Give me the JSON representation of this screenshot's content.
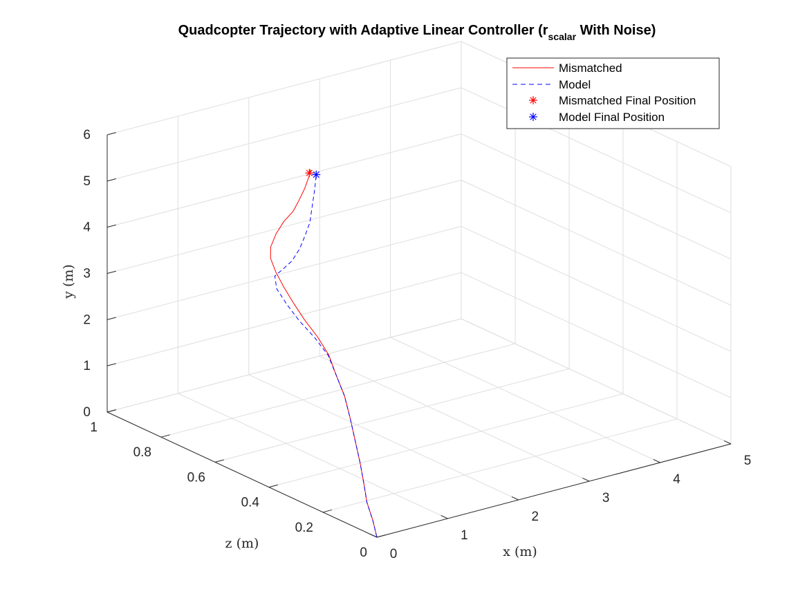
{
  "chart_data": {
    "type": "line",
    "title": {
      "prefix": "Quadcopter Trajectory with Adaptive Linear Controller (r",
      "subscript": "scalar",
      "suffix": " With Noise)"
    },
    "xlabel": "x (m)",
    "ylabel": "y (m)",
    "zlabel": "z (m)",
    "xlim": [
      0,
      5
    ],
    "ylim": [
      0,
      6
    ],
    "zlim": [
      0,
      1
    ],
    "x_ticks": [
      "0",
      "1",
      "2",
      "3",
      "4",
      "5"
    ],
    "y_ticks": [
      "0",
      "1",
      "2",
      "3",
      "4",
      "5",
      "6"
    ],
    "z_ticks": [
      "0",
      "0.2",
      "0.4",
      "0.6",
      "0.8",
      "1"
    ],
    "grid": true,
    "legend_position": "top-right",
    "legend": [
      {
        "label": "Mismatched",
        "style": "solid-line",
        "color": "#ff0000"
      },
      {
        "label": "Model",
        "style": "dashed-line",
        "color": "#0000ff"
      },
      {
        "label": "Mismatched Final Position",
        "style": "asterisk",
        "color": "#ff0000"
      },
      {
        "label": "Model Final Position",
        "style": "asterisk",
        "color": "#0000ff"
      }
    ],
    "series": [
      {
        "name": "Mismatched",
        "color": "#ff0000",
        "style": "solid",
        "x": [
          0,
          0.02,
          0.05,
          0.12,
          0.22,
          0.34,
          0.46,
          0.57,
          0.68,
          0.77,
          0.84,
          0.88,
          0.92,
          0.97,
          1.01,
          1.05,
          1.09,
          1.13,
          1.16,
          1.18,
          1.19,
          1.19,
          1.17,
          1.16,
          1.16
        ],
        "y": [
          0,
          0.3,
          0.6,
          0.9,
          1.2,
          1.5,
          1.8,
          2.1,
          2.35,
          2.6,
          2.8,
          3.0,
          3.2,
          3.4,
          3.6,
          3.8,
          4.0,
          4.3,
          4.6,
          4.9,
          5.2,
          5.5,
          5.8,
          6.0,
          5.91
        ],
        "z": [
          0,
          0.02,
          0.05,
          0.08,
          0.12,
          0.17,
          0.22,
          0.27,
          0.33,
          0.38,
          0.44,
          0.5,
          0.55,
          0.6,
          0.64,
          0.67,
          0.68,
          0.67,
          0.65,
          0.62,
          0.6,
          0.58,
          0.56,
          0.55,
          0.555
        ]
      },
      {
        "name": "Model",
        "color": "#0000ff",
        "style": "dashed",
        "x": [
          0,
          0.02,
          0.05,
          0.12,
          0.22,
          0.34,
          0.46,
          0.57,
          0.68,
          0.76,
          0.8,
          0.81,
          0.83,
          0.87,
          0.92,
          0.97,
          1.01,
          1.04,
          1.08,
          1.11,
          1.14,
          1.18,
          1.2
        ],
        "y": [
          0,
          0.3,
          0.6,
          0.9,
          1.2,
          1.5,
          1.8,
          2.1,
          2.35,
          2.6,
          2.8,
          3.0,
          3.2,
          3.4,
          3.6,
          3.8,
          4.0,
          4.3,
          4.6,
          4.9,
          5.2,
          5.6,
          5.9
        ],
        "z": [
          0,
          0.02,
          0.05,
          0.08,
          0.12,
          0.17,
          0.22,
          0.27,
          0.33,
          0.38,
          0.44,
          0.5,
          0.55,
          0.6,
          0.62,
          0.6,
          0.58,
          0.56,
          0.55,
          0.54,
          0.54,
          0.54,
          0.54
        ]
      }
    ],
    "final_positions": [
      {
        "name": "Mismatched Final Position",
        "color": "#ff0000",
        "x": 1.16,
        "y": 5.91,
        "z": 0.555
      },
      {
        "name": "Model Final Position",
        "color": "#0000ff",
        "x": 1.2,
        "y": 5.9,
        "z": 0.54
      }
    ]
  }
}
